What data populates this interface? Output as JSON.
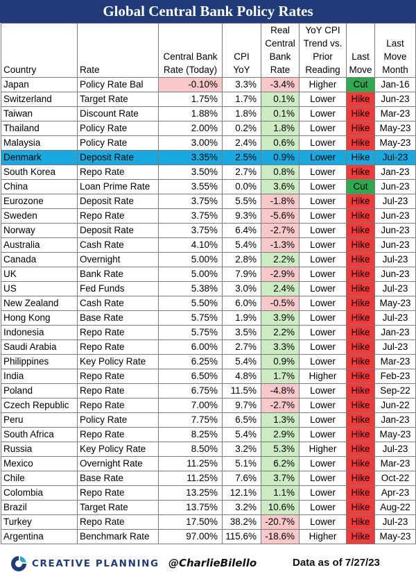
{
  "colors": {
    "title_bg": "#1f3c78",
    "highlight_row": "#17a9e0",
    "positive": "#cdecc4",
    "negative": "#f8c8cb",
    "cut": "#2fa84f",
    "hike": "#f23b3b"
  },
  "chart_data": {
    "type": "table",
    "title": "Global Central Bank Policy Rates",
    "columns": [
      "Country",
      "Rate",
      "Central Bank Rate (Today)",
      "CPI YoY",
      "Real Central Bank Rate",
      "YoY CPI Trend vs. Prior Reading",
      "Last Move",
      "Last Move Month"
    ],
    "rows": [
      [
        "Japan",
        "Policy Rate Bal",
        "-0.10%",
        "3.3%",
        "-3.4%",
        "Higher",
        "Cut",
        "Jan-16"
      ],
      [
        "Switzerland",
        "Target Rate",
        "1.75%",
        "1.7%",
        "0.1%",
        "Lower",
        "Hike",
        "Jun-23"
      ],
      [
        "Taiwan",
        "Discount Rate",
        "1.88%",
        "1.8%",
        "0.1%",
        "Lower",
        "Hike",
        "Mar-23"
      ],
      [
        "Thailand",
        "Policy Rate",
        "2.00%",
        "0.2%",
        "1.8%",
        "Lower",
        "Hike",
        "May-23"
      ],
      [
        "Malaysia",
        "Policy Rate",
        "3.00%",
        "2.4%",
        "0.6%",
        "Lower",
        "Hike",
        "May-23"
      ],
      [
        "Denmark",
        "Deposit Rate",
        "3.35%",
        "2.5%",
        "0.9%",
        "Lower",
        "Hike",
        "Jul-23"
      ],
      [
        "South Korea",
        "Repo Rate",
        "3.50%",
        "2.7%",
        "0.8%",
        "Lower",
        "Hike",
        "Jan-23"
      ],
      [
        "China",
        "Loan Prime Rate",
        "3.55%",
        "0.0%",
        "3.6%",
        "Lower",
        "Cut",
        "Jun-23"
      ],
      [
        "Eurozone",
        "Deposit Rate",
        "3.75%",
        "5.5%",
        "-1.8%",
        "Lower",
        "Hike",
        "Jul-23"
      ],
      [
        "Sweden",
        "Repo Rate",
        "3.75%",
        "9.3%",
        "-5.6%",
        "Lower",
        "Hike",
        "Jun-23"
      ],
      [
        "Norway",
        "Deposit Rate",
        "3.75%",
        "6.4%",
        "-2.7%",
        "Lower",
        "Hike",
        "Jun-23"
      ],
      [
        "Australia",
        "Cash Rate",
        "4.10%",
        "5.4%",
        "-1.3%",
        "Lower",
        "Hike",
        "Jun-23"
      ],
      [
        "Canada",
        "Overnight",
        "5.00%",
        "2.8%",
        "2.2%",
        "Lower",
        "Hike",
        "Jul-23"
      ],
      [
        "UK",
        "Bank Rate",
        "5.00%",
        "7.9%",
        "-2.9%",
        "Lower",
        "Hike",
        "Jun-23"
      ],
      [
        "US",
        "Fed Funds",
        "5.38%",
        "3.0%",
        "2.4%",
        "Lower",
        "Hike",
        "Jul-23"
      ],
      [
        "New Zealand",
        "Cash Rate",
        "5.50%",
        "6.0%",
        "-0.5%",
        "Lower",
        "Hike",
        "May-23"
      ],
      [
        "Hong Kong",
        "Base Rate",
        "5.75%",
        "1.9%",
        "3.9%",
        "Lower",
        "Hike",
        "Jul-23"
      ],
      [
        "Indonesia",
        "Repo Rate",
        "5.75%",
        "3.5%",
        "2.2%",
        "Lower",
        "Hike",
        "Jan-23"
      ],
      [
        "Saudi Arabia",
        "Repo Rate",
        "6.00%",
        "2.7%",
        "3.3%",
        "Lower",
        "Hike",
        "Jul-23"
      ],
      [
        "Philippines",
        "Key Policy Rate",
        "6.25%",
        "5.4%",
        "0.9%",
        "Lower",
        "Hike",
        "Mar-23"
      ],
      [
        "India",
        "Repo Rate",
        "6.50%",
        "4.8%",
        "1.7%",
        "Higher",
        "Hike",
        "Feb-23"
      ],
      [
        "Poland",
        "Repo Rate",
        "6.75%",
        "11.5%",
        "-4.8%",
        "Lower",
        "Hike",
        "Sep-22"
      ],
      [
        "Czech Republic",
        "Repo Rate",
        "7.00%",
        "9.7%",
        "-2.7%",
        "Lower",
        "Hike",
        "Jun-22"
      ],
      [
        "Peru",
        "Policy Rate",
        "7.75%",
        "6.5%",
        "1.3%",
        "Lower",
        "Hike",
        "Jan-23"
      ],
      [
        "South Africa",
        "Repo Rate",
        "8.25%",
        "5.4%",
        "2.9%",
        "Lower",
        "Hike",
        "May-23"
      ],
      [
        "Russia",
        "Key Policy Rate",
        "8.50%",
        "3.2%",
        "5.3%",
        "Higher",
        "Hike",
        "Jul-23"
      ],
      [
        "Mexico",
        "Overnight Rate",
        "11.25%",
        "5.1%",
        "6.2%",
        "Lower",
        "Hike",
        "Mar-23"
      ],
      [
        "Chile",
        "Base Rate",
        "11.25%",
        "7.6%",
        "3.7%",
        "Lower",
        "Hike",
        "Oct-22"
      ],
      [
        "Colombia",
        "Repo Rate",
        "13.25%",
        "12.1%",
        "1.1%",
        "Lower",
        "Hike",
        "Apr-23"
      ],
      [
        "Brazil",
        "Target Rate",
        "13.75%",
        "3.2%",
        "10.6%",
        "Lower",
        "Hike",
        "Aug-22"
      ],
      [
        "Turkey",
        "Repo Rate",
        "17.50%",
        "38.2%",
        "-20.7%",
        "Lower",
        "Hike",
        "Jul-23"
      ],
      [
        "Argentina",
        "Benchmark Rate",
        "97.00%",
        "115.6%",
        "-18.6%",
        "Higher",
        "Hike",
        "May-23"
      ]
    ],
    "highlight_row": "Denmark"
  },
  "footer": {
    "logo_text": "CREATIVE PLANNING",
    "logo_icon": "creative-planning-logo-icon",
    "handle": "@CharlieBilello",
    "as_of": "Data as of 7/27/23"
  }
}
